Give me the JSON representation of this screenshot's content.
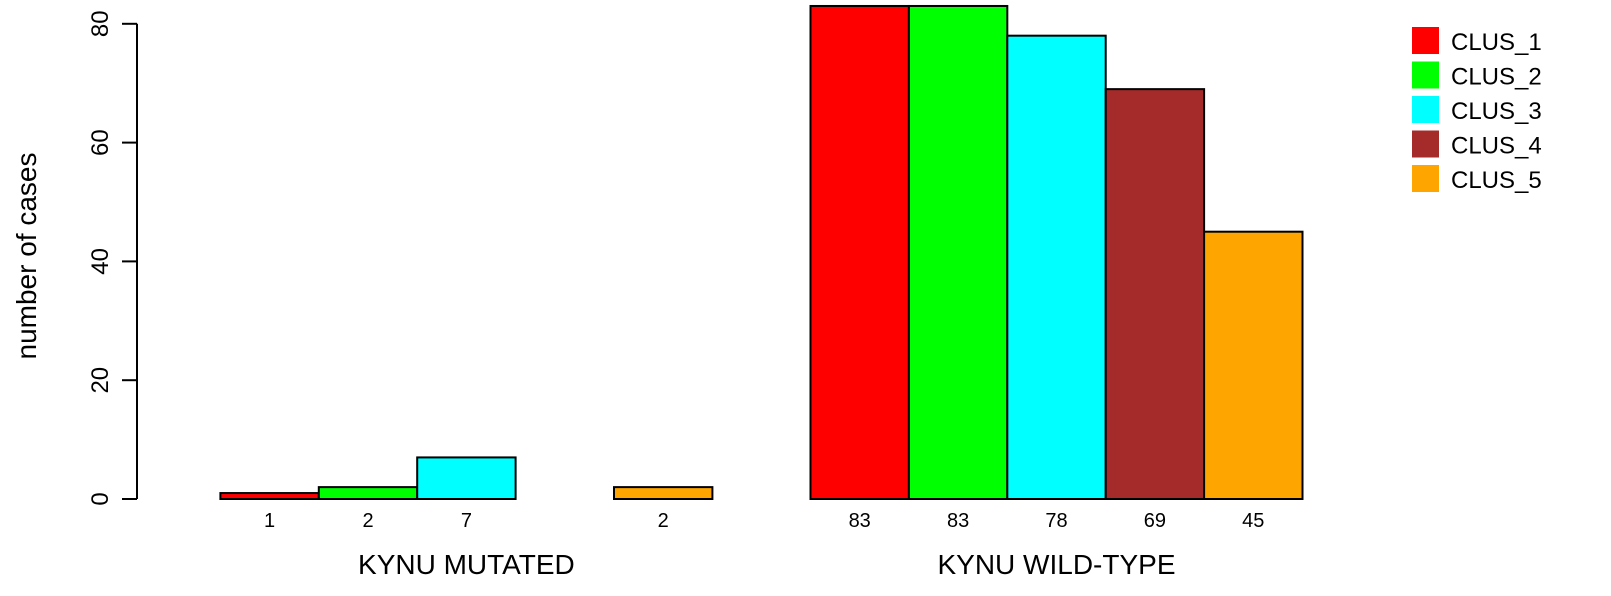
{
  "chart_data": {
    "type": "bar",
    "ylabel": "number of cases",
    "ylim": [
      0,
      83
    ],
    "yticks": [
      0,
      20,
      40,
      60,
      80
    ],
    "groups": [
      {
        "label": "KYNU MUTATED",
        "values": [
          1,
          2,
          7,
          0,
          2
        ],
        "value_labels": [
          "1",
          "2",
          "7",
          "",
          "2"
        ]
      },
      {
        "label": "KYNU WILD-TYPE",
        "values": [
          83,
          83,
          78,
          69,
          45
        ],
        "value_labels": [
          "83",
          "83",
          "78",
          "69",
          "45"
        ]
      }
    ],
    "series": [
      {
        "name": "CLUS_1",
        "color": "#ff0000"
      },
      {
        "name": "CLUS_2",
        "color": "#00ff00"
      },
      {
        "name": "CLUS_3",
        "color": "#00ffff"
      },
      {
        "name": "CLUS_4",
        "color": "#a52a2a"
      },
      {
        "name": "CLUS_5",
        "color": "#ffa500"
      }
    ],
    "legend_position": "top-right",
    "grid": false
  }
}
